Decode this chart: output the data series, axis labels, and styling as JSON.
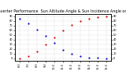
{
  "title": "Solar PV/Inverter Performance  Sun Altitude Angle & Sun Incidence Angle on PV Panels",
  "ylim_left": [
    -5,
    95
  ],
  "ylim_right": [
    -5,
    95
  ],
  "xlim": [
    -0.5,
    10.5
  ],
  "background_color": "#ffffff",
  "grid_color": "#aaaaaa",
  "altitude_color": "#0000cc",
  "incidence_color": "#cc0000",
  "title_fontsize": 3.5,
  "tick_fontsize": 2.5,
  "x_tick_labels": [
    "6:0",
    "7:0",
    "8:0",
    "9:0",
    "10:0",
    "11:0",
    "12:0",
    "13:0",
    "14:0",
    "15:0",
    "16:0"
  ],
  "y_ticks_left": [
    0,
    10,
    20,
    30,
    40,
    50,
    60,
    70,
    80,
    90
  ],
  "y_ticks_right": [
    0,
    10,
    20,
    30,
    40,
    50,
    60,
    70,
    80,
    90
  ],
  "marker_size": 1.2,
  "altitude_x": [
    0,
    1,
    2,
    3,
    4,
    5,
    6,
    7,
    8,
    9,
    10
  ],
  "altitude_y": [
    85,
    75,
    62,
    48,
    33,
    18,
    10,
    5,
    2,
    1,
    0
  ],
  "incidence_x": [
    0,
    1,
    2,
    3,
    4,
    5,
    6,
    7,
    8,
    9,
    10
  ],
  "incidence_y": [
    0,
    5,
    15,
    30,
    45,
    60,
    72,
    80,
    85,
    88,
    90
  ]
}
